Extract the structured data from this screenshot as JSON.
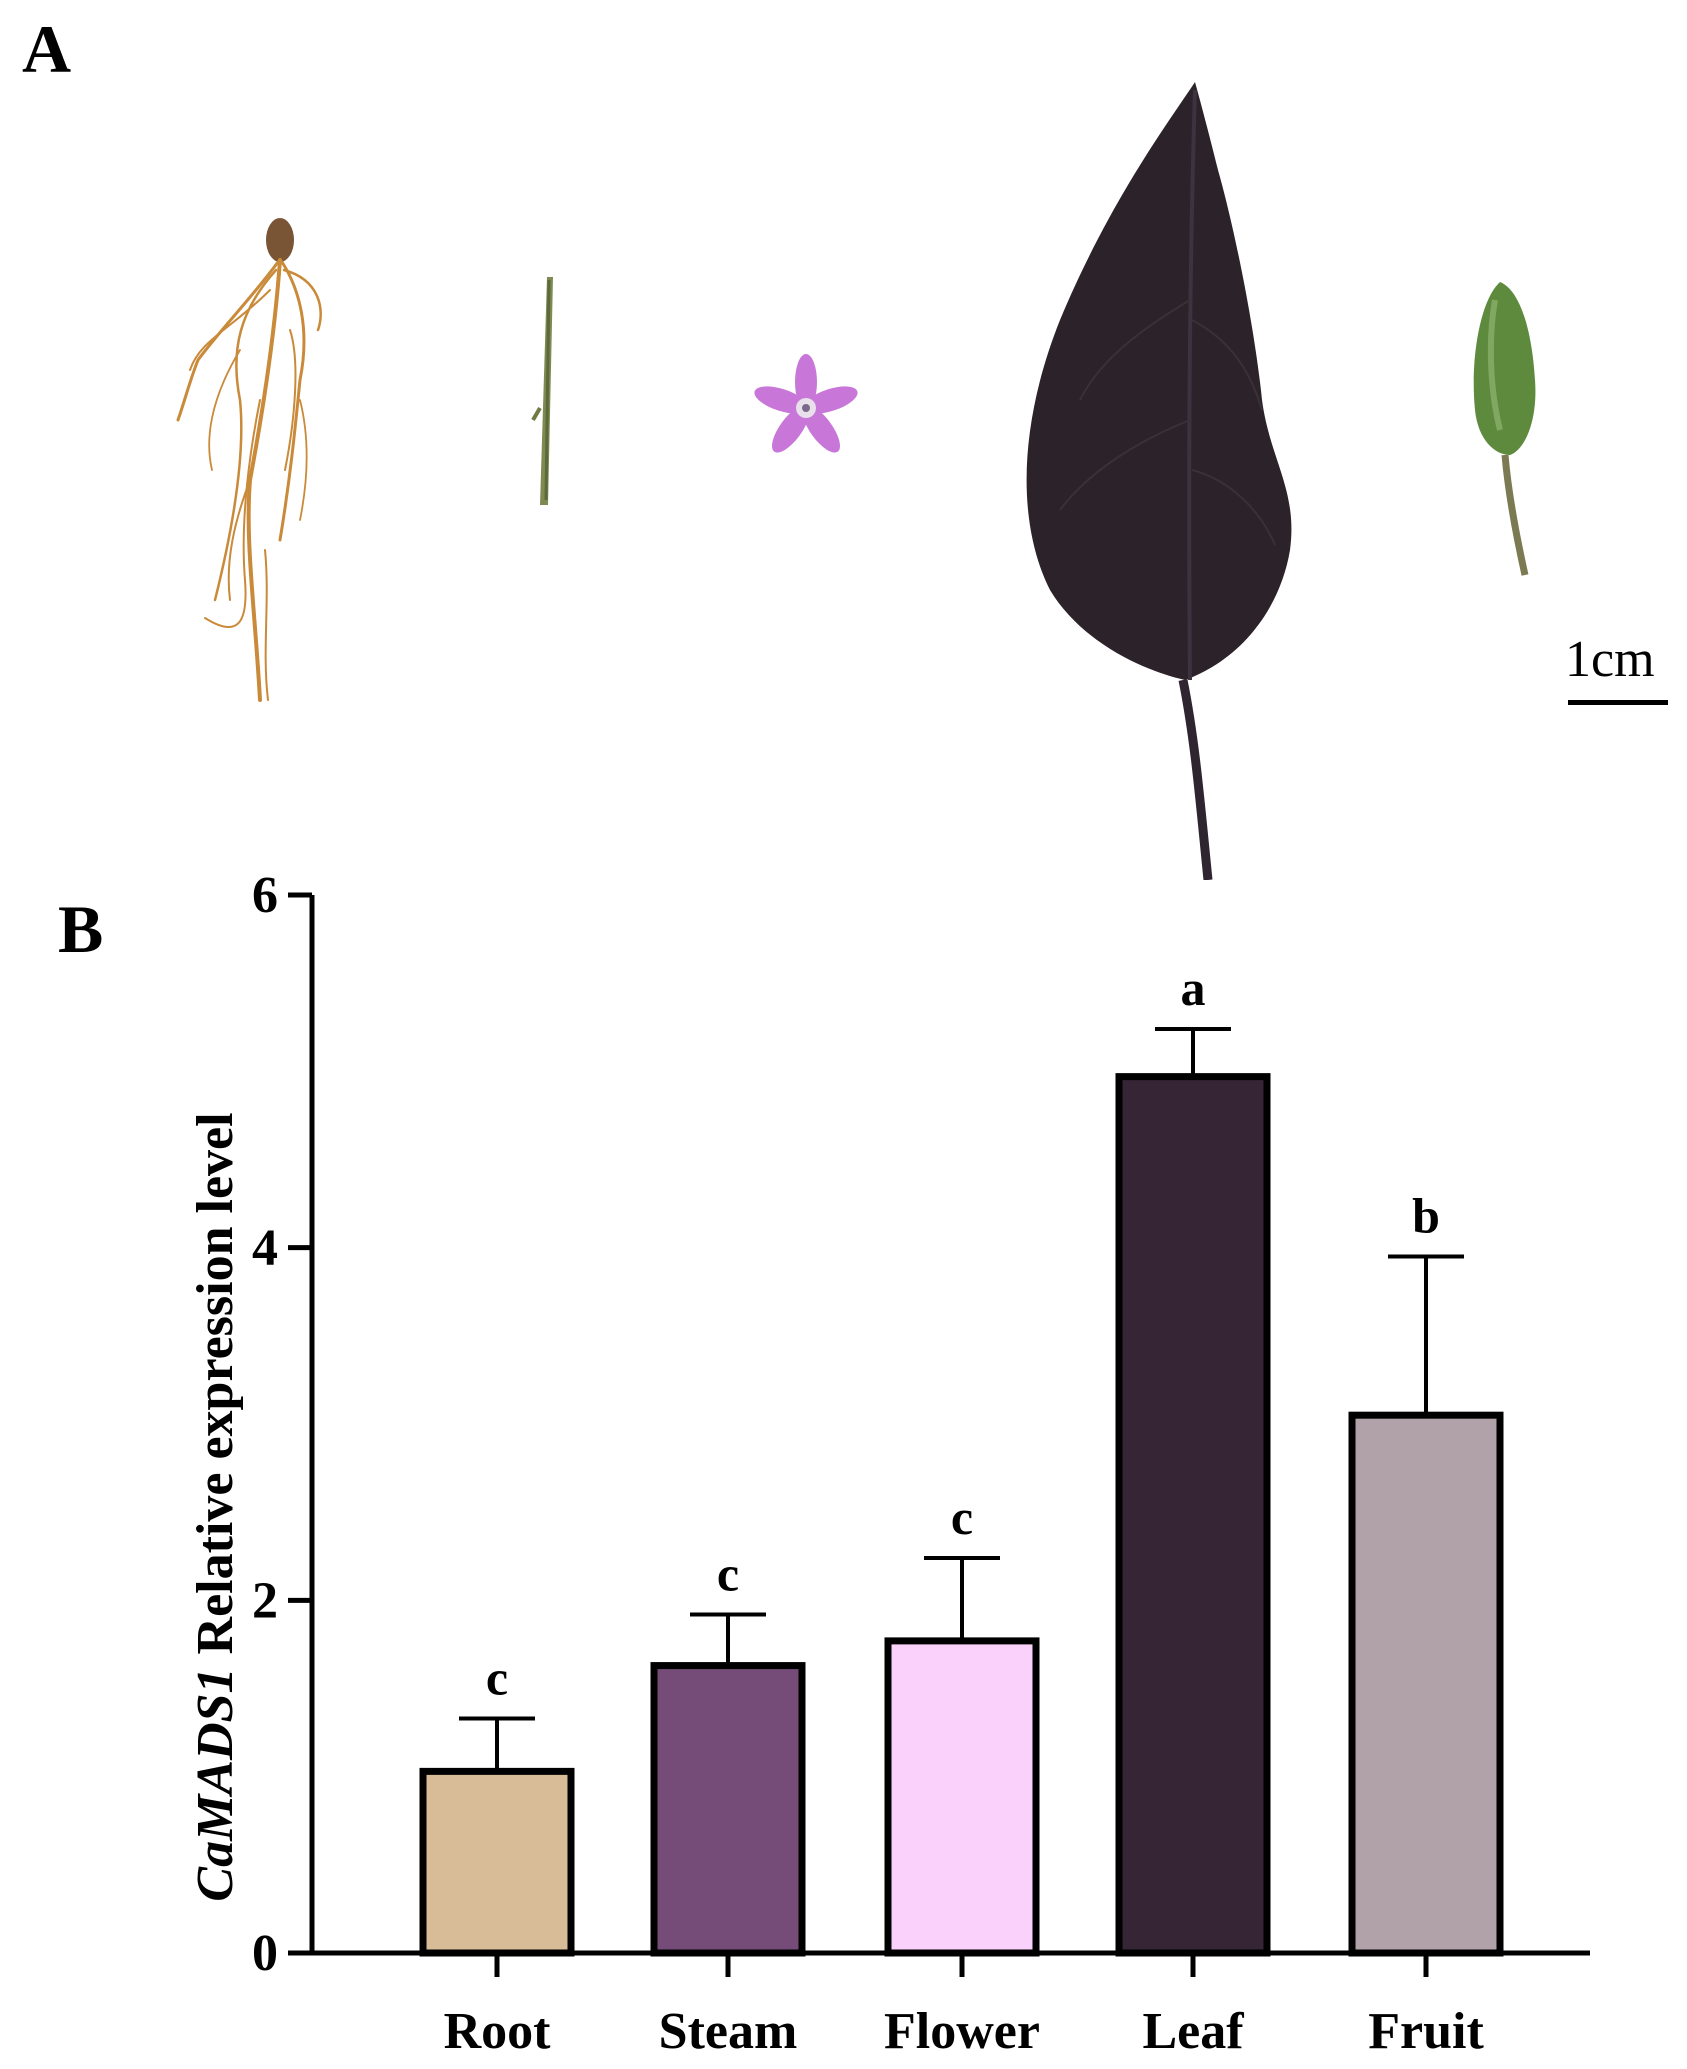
{
  "panels": {
    "a": "A",
    "b": "B"
  },
  "scale_bar": {
    "label": "1cm"
  },
  "photo_specimens": [
    "root",
    "stem",
    "flower",
    "leaf",
    "fruit"
  ],
  "colors": {
    "root": "#d8bb97",
    "steam": "#754b78",
    "flower": "#f9d1fa",
    "leaf": "#352535",
    "fruit": "#b1a1a8",
    "axis": "#000000"
  },
  "chart_data": {
    "type": "bar",
    "categories": [
      "Root",
      "Steam",
      "Flower",
      "Leaf",
      "Fruit"
    ],
    "values": [
      1.03,
      1.63,
      1.77,
      4.97,
      3.05
    ],
    "errors": [
      0.3,
      0.29,
      0.47,
      0.27,
      0.9
    ],
    "significance": [
      "c",
      "c",
      "c",
      "a",
      "b"
    ],
    "ylabel_italic": "CaMADS1",
    "ylabel_rest": " Relative expression level",
    "xlabel": "",
    "ylim": [
      0,
      6
    ],
    "yticks": [
      0,
      2,
      4,
      6
    ],
    "grid": false,
    "bar_colors": [
      "#d8bb97",
      "#754b78",
      "#f9d1fa",
      "#352535",
      "#b1a1a8"
    ]
  }
}
